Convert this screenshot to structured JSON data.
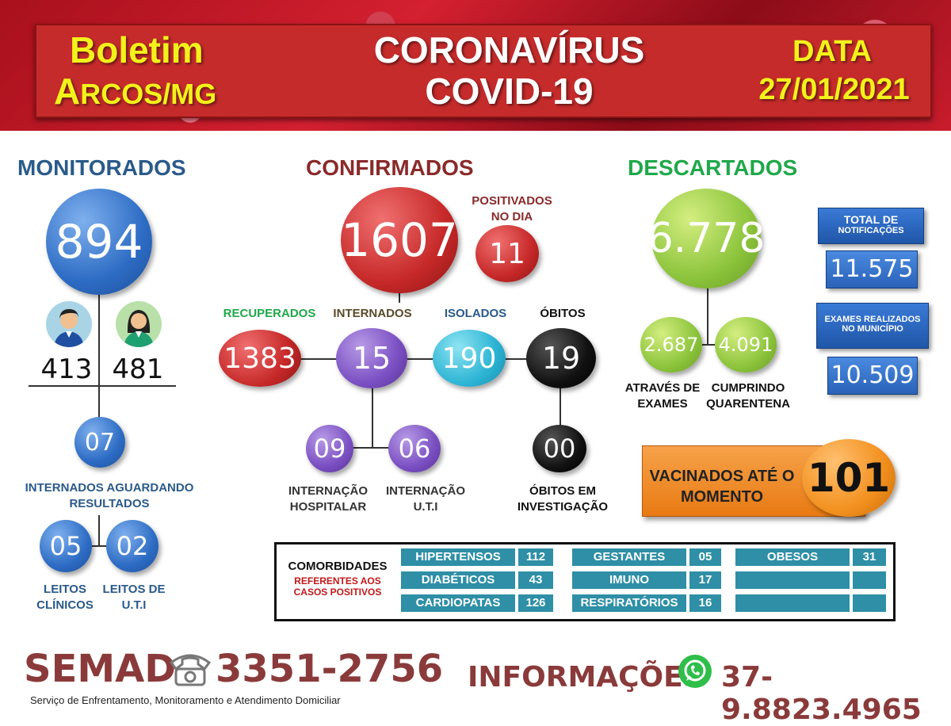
{
  "header": {
    "left_line1": "Boletim",
    "left_line2": "Arcos/MG",
    "center_line1": "CORONAVÍRUS",
    "center_line2": "COVID-19",
    "right_line1": "DATA",
    "right_line2": "27/01/2021"
  },
  "monitorados": {
    "title": "MONITORADOS",
    "total": "894",
    "men": "413",
    "women": "481",
    "awaiting": "07",
    "awaiting_label": "INTERNADOS AGUARDANDO RESULTADOS",
    "clinic_beds": "05",
    "clinic_label": "LEITOS CLÍNICOS",
    "icu_beds": "02",
    "icu_label": "LEITOS DE U.T.I"
  },
  "confirmados": {
    "title": "CONFIRMADOS",
    "total": "1607",
    "positive_day_label": "POSITIVADOS NO DIA",
    "positive_day": "11",
    "recovered_label": "RECUPERADOS",
    "recovered": "1383",
    "hospitalized_label": "INTERNADOS",
    "hospitalized": "15",
    "isolated_label": "ISOLADOS",
    "isolated": "190",
    "deaths_label": "ÓBITOS",
    "deaths": "19",
    "hospital_ward": "09",
    "hospital_ward_label": "INTERNAÇÃO HOSPITALAR",
    "icu": "06",
    "icu_label": "INTERNAÇÃO U.T.I",
    "deaths_investigation": "00",
    "deaths_investigation_label": "ÓBITOS EM INVESTIGAÇÃO"
  },
  "descartados": {
    "title": "DESCARTADOS",
    "total": "6.778",
    "by_exams": "2.687",
    "by_exams_label": "ATRAVÉS DE EXAMES",
    "quarantine": "4.091",
    "quarantine_label": "CUMPRINDO QUARENTENA"
  },
  "notifications": {
    "label_line1": "TOTAL DE",
    "label_line2": "NOTIFICAÇÕES",
    "value": "11.575"
  },
  "exams": {
    "label_line1": "EXAMES REALIZADOS",
    "label_line2": "NO MUNICÍPIO",
    "value": "10.509"
  },
  "vaccinated": {
    "label": "VACINADOS ATÉ O MOMENTO",
    "value": "101"
  },
  "comorbidities": {
    "title": "COMORBIDADES",
    "subtitle": "REFERENTES AOS CASOS POSITIVOS",
    "rows": [
      {
        "a": "HIPERTENSOS",
        "av": "112",
        "b": "GESTANTES",
        "bv": "05",
        "c": "OBESOS",
        "cv": "31"
      },
      {
        "a": "DIABÉTICOS",
        "av": "43",
        "b": "IMUNO",
        "bv": "17",
        "c": "",
        "cv": ""
      },
      {
        "a": "CARDIOPATAS",
        "av": "126",
        "b": "RESPIRATÓRIOS",
        "bv": "16",
        "c": "",
        "cv": ""
      }
    ]
  },
  "footer": {
    "semad": "SEMAD",
    "semad_phone": "3351-2756",
    "semad_desc": "Serviço de Enfrentamento, Monitoramento e Atendimento Domiciliar",
    "info": "INFORMAÇÕES",
    "info_phone": "37-9.8823.4965"
  },
  "colors": {
    "header_red": "#c62b2b",
    "yellow": "#f2f21a",
    "blue_title": "#2a5a8a",
    "red_title": "#8a2a2a",
    "green_title": "#1fa84a",
    "orange": "#f28a1e"
  }
}
